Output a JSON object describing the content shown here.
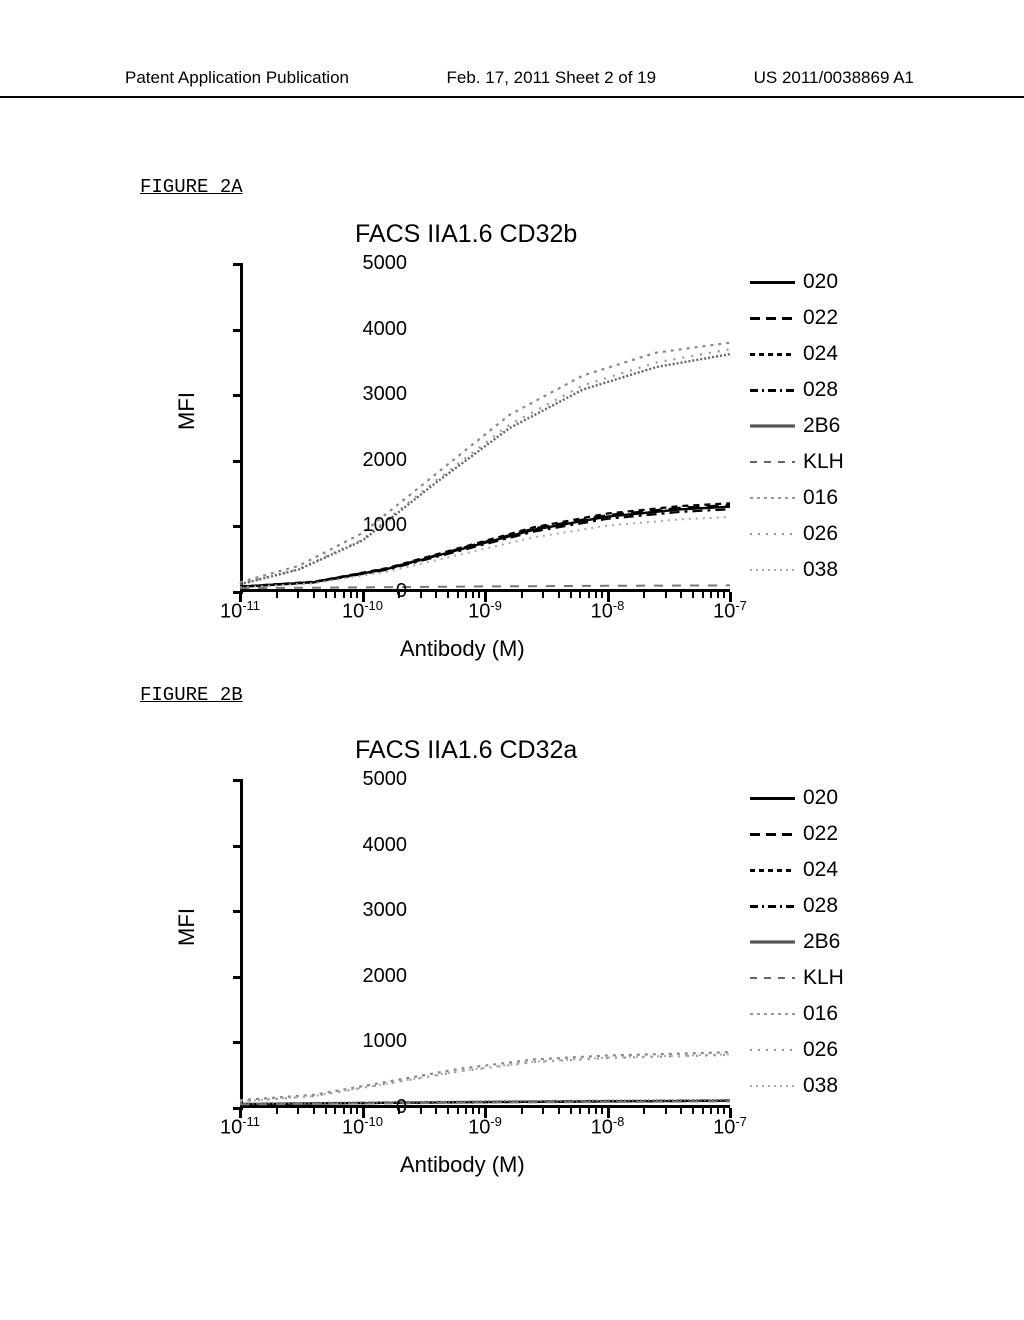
{
  "header": {
    "left": "Patent Application Publication",
    "center": "Feb. 17, 2011  Sheet 2 of 19",
    "right": "US 2011/0038869 A1"
  },
  "figA": {
    "label": "FIGURE 2A",
    "title": "FACS IIA1.6 CD32b",
    "ylabel": "MFI",
    "xlabel": "Antibody (M)",
    "ylim": [
      0,
      5000
    ],
    "ytick_step": 1000,
    "xticks": [
      "10⁻¹¹",
      "10⁻¹⁰",
      "10⁻⁹",
      "10⁻⁸",
      "10⁻⁷"
    ],
    "yticks": [
      "0",
      "1000",
      "2000",
      "3000",
      "4000",
      "5000"
    ],
    "series": [
      {
        "name": "020",
        "style": "line-solid",
        "end_mfi": 1250
      },
      {
        "name": "022",
        "style": "line-dash-long",
        "end_mfi": 1300
      },
      {
        "name": "024",
        "style": "line-dash-short",
        "end_mfi": 1310
      },
      {
        "name": "028",
        "style": "line-dash-dot",
        "end_mfi": 1250
      },
      {
        "name": "2B6",
        "style": "line-fuzzy",
        "end_mfi": 3700
      },
      {
        "name": "KLH",
        "style": "line-dash-space",
        "end_mfi": 100
      },
      {
        "name": "016",
        "style": "line-dot",
        "end_mfi": 3800
      },
      {
        "name": "026",
        "style": "line-dot-sparse",
        "end_mfi": 3750
      },
      {
        "name": "038",
        "style": "line-dot-fine",
        "end_mfi": 1100
      }
    ],
    "curves": {
      "high": [
        {
          "x": 0.0,
          "y": 150
        },
        {
          "x": 0.12,
          "y": 400
        },
        {
          "x": 0.25,
          "y": 900
        },
        {
          "x": 0.4,
          "y": 1800
        },
        {
          "x": 0.55,
          "y": 2700
        },
        {
          "x": 0.7,
          "y": 3300
        },
        {
          "x": 0.85,
          "y": 3650
        },
        {
          "x": 1.0,
          "y": 3800
        }
      ],
      "high2": [
        {
          "x": 0.0,
          "y": 120
        },
        {
          "x": 0.12,
          "y": 350
        },
        {
          "x": 0.25,
          "y": 800
        },
        {
          "x": 0.4,
          "y": 1700
        },
        {
          "x": 0.55,
          "y": 2550
        },
        {
          "x": 0.7,
          "y": 3150
        },
        {
          "x": 0.85,
          "y": 3500
        },
        {
          "x": 1.0,
          "y": 3700
        }
      ],
      "mid": [
        {
          "x": 0.0,
          "y": 80
        },
        {
          "x": 0.15,
          "y": 150
        },
        {
          "x": 0.3,
          "y": 350
        },
        {
          "x": 0.45,
          "y": 650
        },
        {
          "x": 0.6,
          "y": 950
        },
        {
          "x": 0.75,
          "y": 1150
        },
        {
          "x": 0.9,
          "y": 1260
        },
        {
          "x": 1.0,
          "y": 1300
        }
      ],
      "low": [
        {
          "x": 0.0,
          "y": 60
        },
        {
          "x": 0.25,
          "y": 70
        },
        {
          "x": 0.5,
          "y": 85
        },
        {
          "x": 0.75,
          "y": 95
        },
        {
          "x": 1.0,
          "y": 100
        }
      ]
    }
  },
  "figB": {
    "label": "FIGURE 2B",
    "title": "FACS IIA1.6 CD32a",
    "ylabel": "MFI",
    "xlabel": "Antibody (M)",
    "ylim": [
      0,
      5000
    ],
    "ytick_step": 1000,
    "xticks": [
      "10⁻¹¹",
      "10⁻¹⁰",
      "10⁻⁹",
      "10⁻⁸",
      "10⁻⁷"
    ],
    "yticks": [
      "0",
      "1000",
      "2000",
      "3000",
      "4000",
      "5000"
    ],
    "series": [
      {
        "name": "020",
        "style": "line-solid",
        "end_mfi": 100
      },
      {
        "name": "022",
        "style": "line-dash-long",
        "end_mfi": 100
      },
      {
        "name": "024",
        "style": "line-dash-short",
        "end_mfi": 100
      },
      {
        "name": "028",
        "style": "line-dash-dot",
        "end_mfi": 100
      },
      {
        "name": "2B6",
        "style": "line-fuzzy",
        "end_mfi": 120
      },
      {
        "name": "KLH",
        "style": "line-dash-space",
        "end_mfi": 100
      },
      {
        "name": "016",
        "style": "line-dot",
        "end_mfi": 850
      },
      {
        "name": "026",
        "style": "line-dot-sparse",
        "end_mfi": 800
      },
      {
        "name": "038",
        "style": "line-dot-fine",
        "end_mfi": 820
      }
    ],
    "curves": {
      "mid": [
        {
          "x": 0.0,
          "y": 120
        },
        {
          "x": 0.15,
          "y": 200
        },
        {
          "x": 0.3,
          "y": 400
        },
        {
          "x": 0.45,
          "y": 600
        },
        {
          "x": 0.6,
          "y": 740
        },
        {
          "x": 0.75,
          "y": 800
        },
        {
          "x": 0.9,
          "y": 830
        },
        {
          "x": 1.0,
          "y": 850
        }
      ],
      "mid2": [
        {
          "x": 0.0,
          "y": 100
        },
        {
          "x": 0.15,
          "y": 180
        },
        {
          "x": 0.3,
          "y": 370
        },
        {
          "x": 0.45,
          "y": 560
        },
        {
          "x": 0.6,
          "y": 700
        },
        {
          "x": 0.75,
          "y": 760
        },
        {
          "x": 0.9,
          "y": 790
        },
        {
          "x": 1.0,
          "y": 810
        }
      ],
      "low": [
        {
          "x": 0.0,
          "y": 60
        },
        {
          "x": 0.25,
          "y": 75
        },
        {
          "x": 0.5,
          "y": 90
        },
        {
          "x": 0.75,
          "y": 100
        },
        {
          "x": 1.0,
          "y": 110
        }
      ]
    }
  }
}
